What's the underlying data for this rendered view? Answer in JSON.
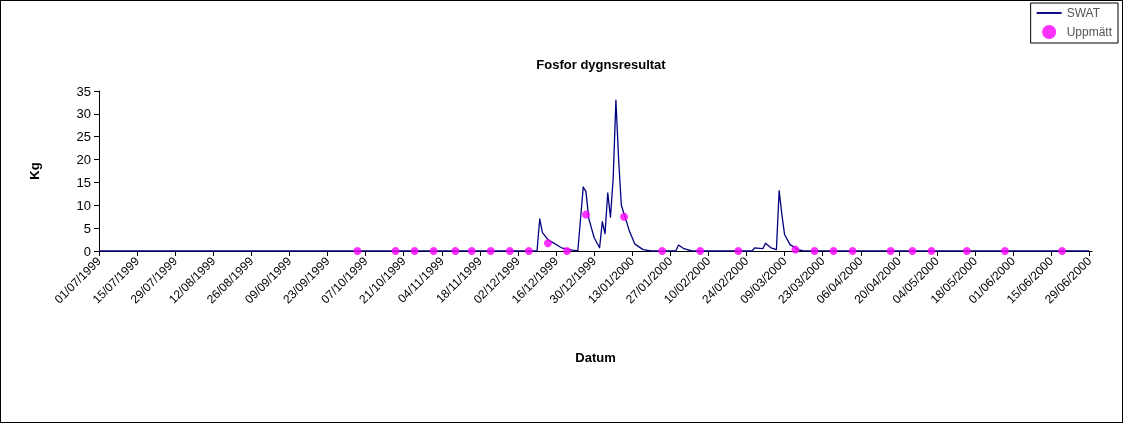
{
  "chart_data": {
    "type": "line",
    "title": "Fosfor dygnsresultat",
    "xlabel": "Datum",
    "ylabel": "Kg",
    "xlim": [
      "1999-07-01",
      "2000-06-30"
    ],
    "xticks": [
      {
        "value": "1999-07-01",
        "label": "01/07/1999"
      },
      {
        "value": "1999-07-15",
        "label": "15/07/1999"
      },
      {
        "value": "1999-07-29",
        "label": "29/07/1999"
      },
      {
        "value": "1999-08-12",
        "label": "12/08/1999"
      },
      {
        "value": "1999-08-26",
        "label": "26/08/1999"
      },
      {
        "value": "1999-09-09",
        "label": "09/09/1999"
      },
      {
        "value": "1999-09-23",
        "label": "23/09/1999"
      },
      {
        "value": "1999-10-07",
        "label": "07/10/1999"
      },
      {
        "value": "1999-10-21",
        "label": "21/10/1999"
      },
      {
        "value": "1999-11-04",
        "label": "04/11/1999"
      },
      {
        "value": "1999-11-18",
        "label": "18/11/1999"
      },
      {
        "value": "1999-12-02",
        "label": "02/12/1999"
      },
      {
        "value": "1999-12-16",
        "label": "16/12/1999"
      },
      {
        "value": "1999-12-30",
        "label": "30/12/1999"
      },
      {
        "value": "2000-01-13",
        "label": "13/01/2000"
      },
      {
        "value": "2000-01-27",
        "label": "27/01/2000"
      },
      {
        "value": "2000-02-10",
        "label": "10/02/2000"
      },
      {
        "value": "2000-02-24",
        "label": "24/02/2000"
      },
      {
        "value": "2000-03-09",
        "label": "09/03/2000"
      },
      {
        "value": "2000-03-23",
        "label": "23/03/2000"
      },
      {
        "value": "2000-04-06",
        "label": "06/04/2000"
      },
      {
        "value": "2000-04-20",
        "label": "20/04/2000"
      },
      {
        "value": "2000-05-04",
        "label": "04/05/2000"
      },
      {
        "value": "2000-05-18",
        "label": "18/05/2000"
      },
      {
        "value": "2000-06-01",
        "label": "01/06/2000"
      },
      {
        "value": "2000-06-15",
        "label": "15/06/2000"
      },
      {
        "value": "2000-06-29",
        "label": "29/06/2000"
      }
    ],
    "ylim": [
      0,
      35
    ],
    "yticks": [
      0,
      5,
      10,
      15,
      20,
      25,
      30,
      35
    ],
    "grid": false,
    "legend": "top right",
    "series": [
      {
        "name": "SWAT",
        "type": "line",
        "color": "#000080",
        "marker": "none",
        "line_style": "solid",
        "x": [
          "1999-07-01",
          "1999-12-09",
          "1999-12-10",
          "1999-12-11",
          "1999-12-13",
          "1999-12-18",
          "1999-12-22",
          "1999-12-24",
          "1999-12-26",
          "1999-12-27",
          "1999-12-28",
          "1999-12-30",
          "2000-01-01",
          "2000-01-02",
          "2000-01-03",
          "2000-01-04",
          "2000-01-05",
          "2000-01-06",
          "2000-01-07",
          "2000-01-08",
          "2000-01-09",
          "2000-01-12",
          "2000-01-14",
          "2000-01-17",
          "2000-01-20",
          "2000-01-29",
          "2000-01-30",
          "2000-02-01",
          "2000-02-04",
          "2000-02-26",
          "2000-02-27",
          "2000-03-01",
          "2000-03-02",
          "2000-03-04",
          "2000-03-06",
          "2000-03-07",
          "2000-03-08",
          "2000-03-09",
          "2000-03-11",
          "2000-03-14",
          "2000-03-16",
          "2000-06-29"
        ],
        "values": [
          0,
          0,
          7,
          4,
          2.5,
          0.7,
          0.2,
          0,
          14,
          13,
          7.2,
          2.9,
          0.7,
          6.4,
          3.8,
          12.7,
          7.4,
          15.9,
          33,
          20,
          10,
          4.3,
          1.5,
          0.3,
          0,
          0,
          1.3,
          0.5,
          0,
          0,
          0.7,
          0.5,
          1.7,
          0.7,
          0.3,
          13.2,
          8,
          3.6,
          1.4,
          0.3,
          0,
          0
        ]
      },
      {
        "name": "Uppmätt",
        "type": "scatter",
        "color": "#ff00ff",
        "marker": "circle",
        "x": [
          "1999-10-04",
          "1999-10-18",
          "1999-10-25",
          "1999-11-01",
          "1999-11-09",
          "1999-11-15",
          "1999-11-22",
          "1999-11-29",
          "1999-12-06",
          "1999-12-13",
          "1999-12-20",
          "1999-12-27",
          "2000-01-10",
          "2000-01-24",
          "2000-02-07",
          "2000-02-21",
          "2000-03-13",
          "2000-03-20",
          "2000-03-27",
          "2000-04-03",
          "2000-04-17",
          "2000-04-25",
          "2000-05-02",
          "2000-05-15",
          "2000-05-29",
          "2000-06-19"
        ],
        "values": [
          0,
          0,
          0,
          0,
          0,
          0,
          0,
          0,
          0,
          1.7,
          0,
          8,
          7.5,
          0,
          0,
          0,
          0.3,
          0,
          0,
          0,
          0,
          0,
          0,
          0,
          0,
          0
        ]
      }
    ]
  }
}
